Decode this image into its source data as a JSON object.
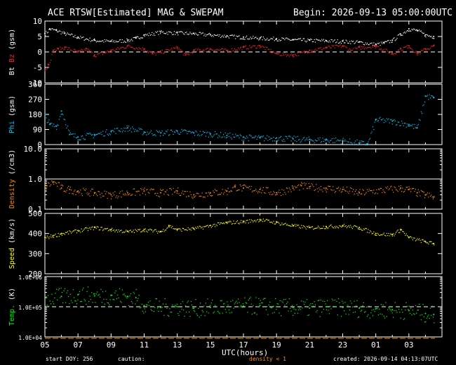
{
  "header": {
    "title": "ACE RTSW[Estimated] MAG & SWEPAM",
    "begin": "Begin: 2026-09-13 05:00:00UTC"
  },
  "footer": {
    "start_doy": "start DOY: 256",
    "caution": "caution:",
    "density_note": "density < 1",
    "created": "created: 2026-09-14 04:13:07UTC"
  },
  "colors": {
    "bt": "#ffffff",
    "bz": "#ff2020",
    "phi": "#00c8ff",
    "density": "#ff8c00",
    "speed": "#ffff00",
    "temp": "#00ff00",
    "axis": "#ffffff",
    "background": "#000000"
  },
  "chart_data": {
    "type": "scatter",
    "xlabel": "UTC(hours)",
    "xlim": [
      5,
      29
    ],
    "xtick_labels": [
      "05",
      "07",
      "09",
      "11",
      "13",
      "15",
      "17",
      "19",
      "21",
      "23",
      "01",
      "03"
    ],
    "panels": [
      {
        "id": "mag",
        "ylabel_parts": [
          "Bt",
          "Bz",
          "(gsm)"
        ],
        "yscale": "linear",
        "ylim": [
          -10,
          10
        ],
        "ytick_labels": [
          "-10",
          "-5",
          "0",
          "5",
          "10"
        ],
        "reference_line": 0,
        "series": [
          {
            "name": "Bt",
            "x": [
              5.0,
              5.3,
              5.7,
              6.2,
              7.0,
              8.0,
              9.0,
              10.0,
              10.5,
              11.0,
              12.0,
              13.0,
              14.0,
              15.0,
              16.0,
              17.0,
              18.0,
              19.0,
              20.0,
              21.0,
              22.0,
              23.0,
              24.0,
              25.0,
              25.5,
              26.0,
              26.5,
              27.0,
              27.5,
              28.0,
              28.5
            ],
            "y": [
              6.0,
              7.5,
              7.0,
              6.0,
              4.8,
              3.8,
              3.5,
              3.8,
              4.5,
              5.5,
              6.5,
              6.2,
              6.0,
              5.6,
              5.2,
              4.8,
              4.5,
              4.3,
              4.0,
              3.8,
              3.7,
              3.5,
              3.2,
              2.5,
              3.0,
              3.8,
              5.8,
              7.5,
              7.0,
              5.5,
              5.0
            ]
          },
          {
            "name": "Bz",
            "x": [
              5.0,
              5.2,
              5.5,
              5.8,
              6.2,
              7.0,
              7.5,
              8.0,
              9.0,
              10.0,
              11.0,
              11.5,
              12.0,
              13.0,
              13.5,
              14.0,
              15.0,
              16.0,
              17.0,
              18.0,
              19.0,
              20.0,
              21.0,
              22.0,
              23.0,
              23.5,
              24.0,
              25.0,
              26.0,
              26.5,
              27.0,
              27.5,
              28.0,
              28.5
            ],
            "y": [
              -6.0,
              -4.0,
              0.5,
              1.0,
              1.5,
              0.0,
              1.0,
              -1.0,
              0.5,
              2.0,
              1.0,
              -0.5,
              0.0,
              1.5,
              -1.0,
              0.5,
              1.0,
              0.5,
              1.5,
              2.0,
              -0.5,
              -1.0,
              0.5,
              1.5,
              2.0,
              0.5,
              1.5,
              2.0,
              -0.5,
              1.0,
              2.0,
              -0.5,
              1.0,
              2.0
            ]
          }
        ]
      },
      {
        "id": "phi",
        "ylabel_parts": [
          "Phi",
          "(gsm)"
        ],
        "yscale": "linear",
        "ylim": [
          0,
          360
        ],
        "ytick_labels": [
          "0",
          "90",
          "180",
          "270",
          "360"
        ],
        "series": [
          {
            "name": "Phi",
            "x": [
              5.0,
              5.3,
              5.7,
              6.0,
              6.5,
              7.0,
              8.0,
              9.0,
              10.0,
              11.0,
              12.0,
              13.0,
              14.0,
              15.0,
              16.0,
              17.0,
              18.0,
              19.0,
              20.0,
              21.0,
              22.0,
              23.0,
              24.0,
              24.5,
              25.0,
              26.0,
              27.0,
              27.5,
              28.0,
              28.5
            ],
            "y": [
              170,
              120,
              110,
              200,
              60,
              45,
              60,
              80,
              100,
              75,
              70,
              80,
              70,
              65,
              55,
              45,
              40,
              40,
              35,
              30,
              30,
              25,
              10,
              5,
              150,
              140,
              120,
              100,
              290,
              280
            ]
          }
        ]
      },
      {
        "id": "density",
        "ylabel_parts": [
          "Density",
          "(/cm3)"
        ],
        "yscale": "log",
        "ylim": [
          0.1,
          10
        ],
        "ytick_labels": [
          "0.1",
          "1.0",
          "10.0"
        ],
        "reference_line": 1,
        "series": [
          {
            "name": "Density",
            "x": [
              5.0,
              5.5,
              6.0,
              6.5,
              7.0,
              8.0,
              9.0,
              10.0,
              11.0,
              12.0,
              13.0,
              14.0,
              15.0,
              16.0,
              16.5,
              17.0,
              18.0,
              19.0,
              20.0,
              20.5,
              21.0,
              22.0,
              23.0,
              24.0,
              26.5,
              27.0,
              27.5,
              28.0,
              28.5
            ],
            "y": [
              0.55,
              0.8,
              0.5,
              0.45,
              0.4,
              0.35,
              0.3,
              0.35,
              0.4,
              0.35,
              0.4,
              0.3,
              0.35,
              0.4,
              0.55,
              0.5,
              0.45,
              0.35,
              0.5,
              0.6,
              0.55,
              0.5,
              0.45,
              0.35,
              0.5,
              0.45,
              0.35,
              0.3,
              0.25
            ]
          }
        ]
      },
      {
        "id": "speed",
        "ylabel_parts": [
          "Speed",
          "(km/s)"
        ],
        "yscale": "linear",
        "ylim": [
          200,
          500
        ],
        "ytick_labels": [
          "200",
          "300",
          "400",
          "500"
        ],
        "series": [
          {
            "name": "Speed",
            "x": [
              5.0,
              5.5,
              6.0,
              7.0,
              8.0,
              9.0,
              10.0,
              11.0,
              12.0,
              12.5,
              13.0,
              14.0,
              15.0,
              16.0,
              17.0,
              18.0,
              19.0,
              20.0,
              21.0,
              22.0,
              23.0,
              24.0,
              25.0,
              26.0,
              26.5,
              27.0,
              28.0,
              28.5
            ],
            "y": [
              380,
              390,
              400,
              415,
              430,
              420,
              410,
              420,
              410,
              440,
              420,
              425,
              440,
              455,
              460,
              470,
              455,
              440,
              430,
              435,
              440,
              430,
              400,
              395,
              420,
              380,
              360,
              350
            ]
          }
        ]
      },
      {
        "id": "temp",
        "ylabel_parts": [
          "Temp.",
          "(K)"
        ],
        "yscale": "log",
        "ylim": [
          10000,
          1000000
        ],
        "ytick_labels": [
          "1.0E+04",
          "1.0E+05",
          "1.0E+06"
        ],
        "reference_line": 100000,
        "series": [
          {
            "name": "Temp.",
            "x": [
              5.0,
              6.0,
              7.0,
              8.0,
              9.0,
              10.0,
              10.5,
              11.0,
              12.0,
              13.0,
              14.0,
              15.0,
              16.0,
              17.0,
              18.0,
              19.0,
              20.0,
              21.0,
              22.0,
              23.0,
              24.0,
              25.0,
              26.0,
              27.0,
              28.0,
              28.5
            ],
            "y": [
              180000,
              220000,
              250000,
              230000,
              240000,
              220000,
              200000,
              110000,
              95000,
              100000,
              90000,
              95000,
              100000,
              105000,
              110000,
              100000,
              95000,
              90000,
              100000,
              95000,
              90000,
              85000,
              80000,
              75000,
              60000,
              55000
            ]
          }
        ]
      }
    ]
  }
}
